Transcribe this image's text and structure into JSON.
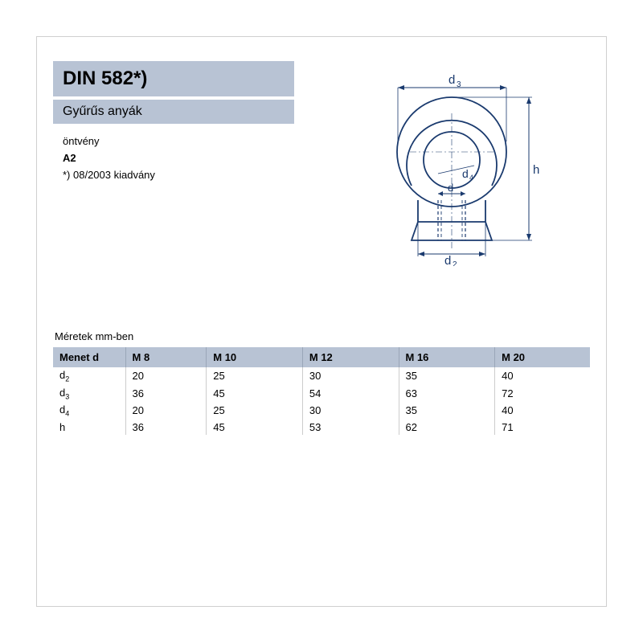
{
  "header": {
    "title": "DIN 582*)",
    "subtitle": "Gyűrűs anyák",
    "line1": "öntvény",
    "line2": "A2",
    "line3": "*) 08/2003 kiadvány"
  },
  "diagram": {
    "labels": {
      "d3": "d₃",
      "d4": "d₄",
      "d": "d",
      "d2": "d₂",
      "h": "h"
    },
    "stroke": "#1a3a6e",
    "fill_light": "#ffffff"
  },
  "table": {
    "caption": "Méretek mm-ben",
    "columns": [
      "Menet d",
      "M 8",
      "M 10",
      "M 12",
      "M 16",
      "M 20"
    ],
    "rows": [
      {
        "label": "d",
        "sub": "2",
        "values": [
          "20",
          "25",
          "30",
          "35",
          "40"
        ]
      },
      {
        "label": "d",
        "sub": "3",
        "values": [
          "36",
          "45",
          "54",
          "63",
          "72"
        ]
      },
      {
        "label": "d",
        "sub": "4",
        "values": [
          "20",
          "25",
          "30",
          "35",
          "40"
        ]
      },
      {
        "label": "h",
        "sub": "",
        "values": [
          "36",
          "45",
          "53",
          "62",
          "71"
        ]
      }
    ]
  },
  "colors": {
    "header_bg": "#b8c3d4",
    "text": "#000000",
    "border": "#cccccc"
  }
}
